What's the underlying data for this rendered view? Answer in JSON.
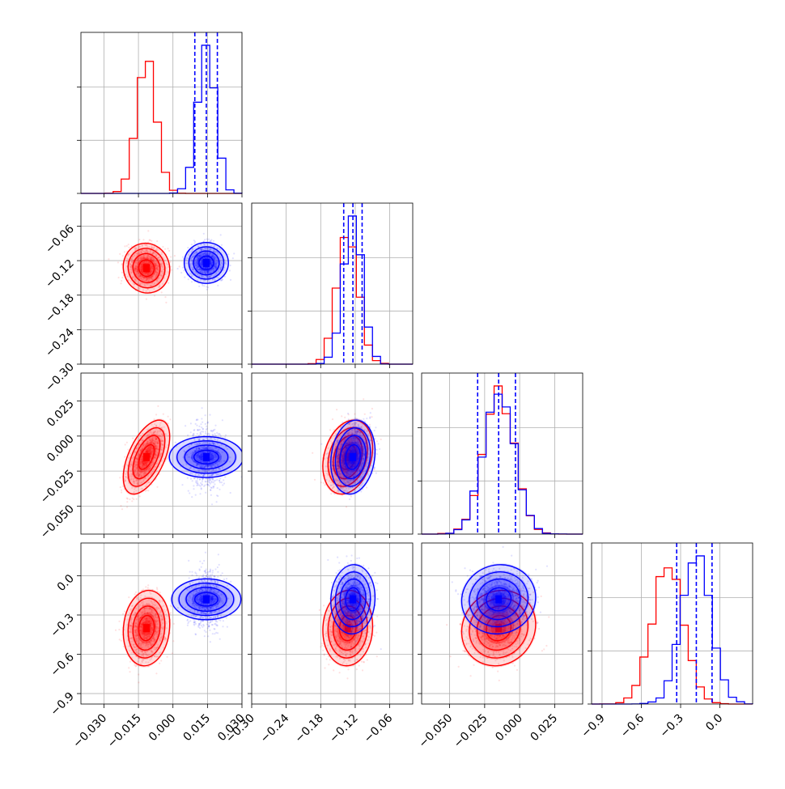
{
  "colors": {
    "series_a": "#ff0000",
    "series_b": "#0000ff",
    "grid": "#b0b0b0",
    "frame": "#000000"
  },
  "chart_data": {
    "type": "corner-plot",
    "grid": true,
    "parameters": [
      {
        "range": [
          -0.04,
          0.03
        ],
        "ticks": [
          -0.03,
          -0.015,
          0.0,
          0.015,
          0.03
        ],
        "tick_labels": [
          "−0.030",
          "−0.015",
          "0.000",
          "0.015",
          "0.030"
        ]
      },
      {
        "range": [
          -0.3,
          -0.02
        ],
        "ticks": [
          -0.3,
          -0.24,
          -0.18,
          -0.12,
          -0.06
        ],
        "tick_labels": [
          "−0.30",
          "−0.24",
          "−0.18",
          "−0.12",
          "−0.06"
        ]
      },
      {
        "range": [
          -0.07,
          0.045
        ],
        "ticks": [
          -0.05,
          -0.025,
          0.0,
          0.025
        ],
        "tick_labels": [
          "−0.050",
          "−0.025",
          "0.000",
          "0.025"
        ]
      },
      {
        "range": [
          -0.98,
          0.25
        ],
        "ticks": [
          -0.9,
          -0.6,
          -0.3,
          0.0
        ],
        "tick_labels": [
          "−0.9",
          "−0.6",
          "−0.3",
          "0.0"
        ]
      }
    ],
    "series": [
      {
        "color": "#ff0000",
        "mean": [
          -0.0115,
          -0.133,
          -0.015,
          -0.4
        ],
        "std": [
          0.0042,
          0.018,
          0.011,
          0.12
        ],
        "correlation": [
          [
            0,
            1,
            -0.05
          ],
          [
            0,
            2,
            0.55
          ],
          [
            0,
            3,
            0.1
          ],
          [
            1,
            2,
            0.25
          ],
          [
            1,
            3,
            0.05
          ],
          [
            2,
            3,
            0.1
          ]
        ]
      },
      {
        "color": "#0000ff",
        "mean": [
          0.0145,
          -0.124,
          -0.015,
          -0.18
        ],
        "std": [
          0.0037,
          0.016,
          0.011,
          0.11
        ],
        "correlation": [
          [
            0,
            1,
            0.0
          ],
          [
            0,
            2,
            0.0
          ],
          [
            0,
            3,
            0.0
          ],
          [
            1,
            2,
            0.15
          ],
          [
            1,
            3,
            0.05
          ],
          [
            2,
            3,
            0.05
          ]
        ]
      }
    ],
    "quantile_lines": [
      {
        "color": "#0000ff",
        "values": [
          0.0095,
          0.0145,
          0.0193
        ]
      },
      {
        "color": "#0000ff",
        "values": [
          -0.14,
          -0.124,
          -0.108
        ]
      },
      {
        "color": "#0000ff",
        "values": [
          -0.03,
          -0.015,
          -0.003
        ]
      },
      {
        "color": "#0000ff",
        "values": [
          -0.33,
          -0.18,
          -0.06
        ]
      }
    ]
  }
}
